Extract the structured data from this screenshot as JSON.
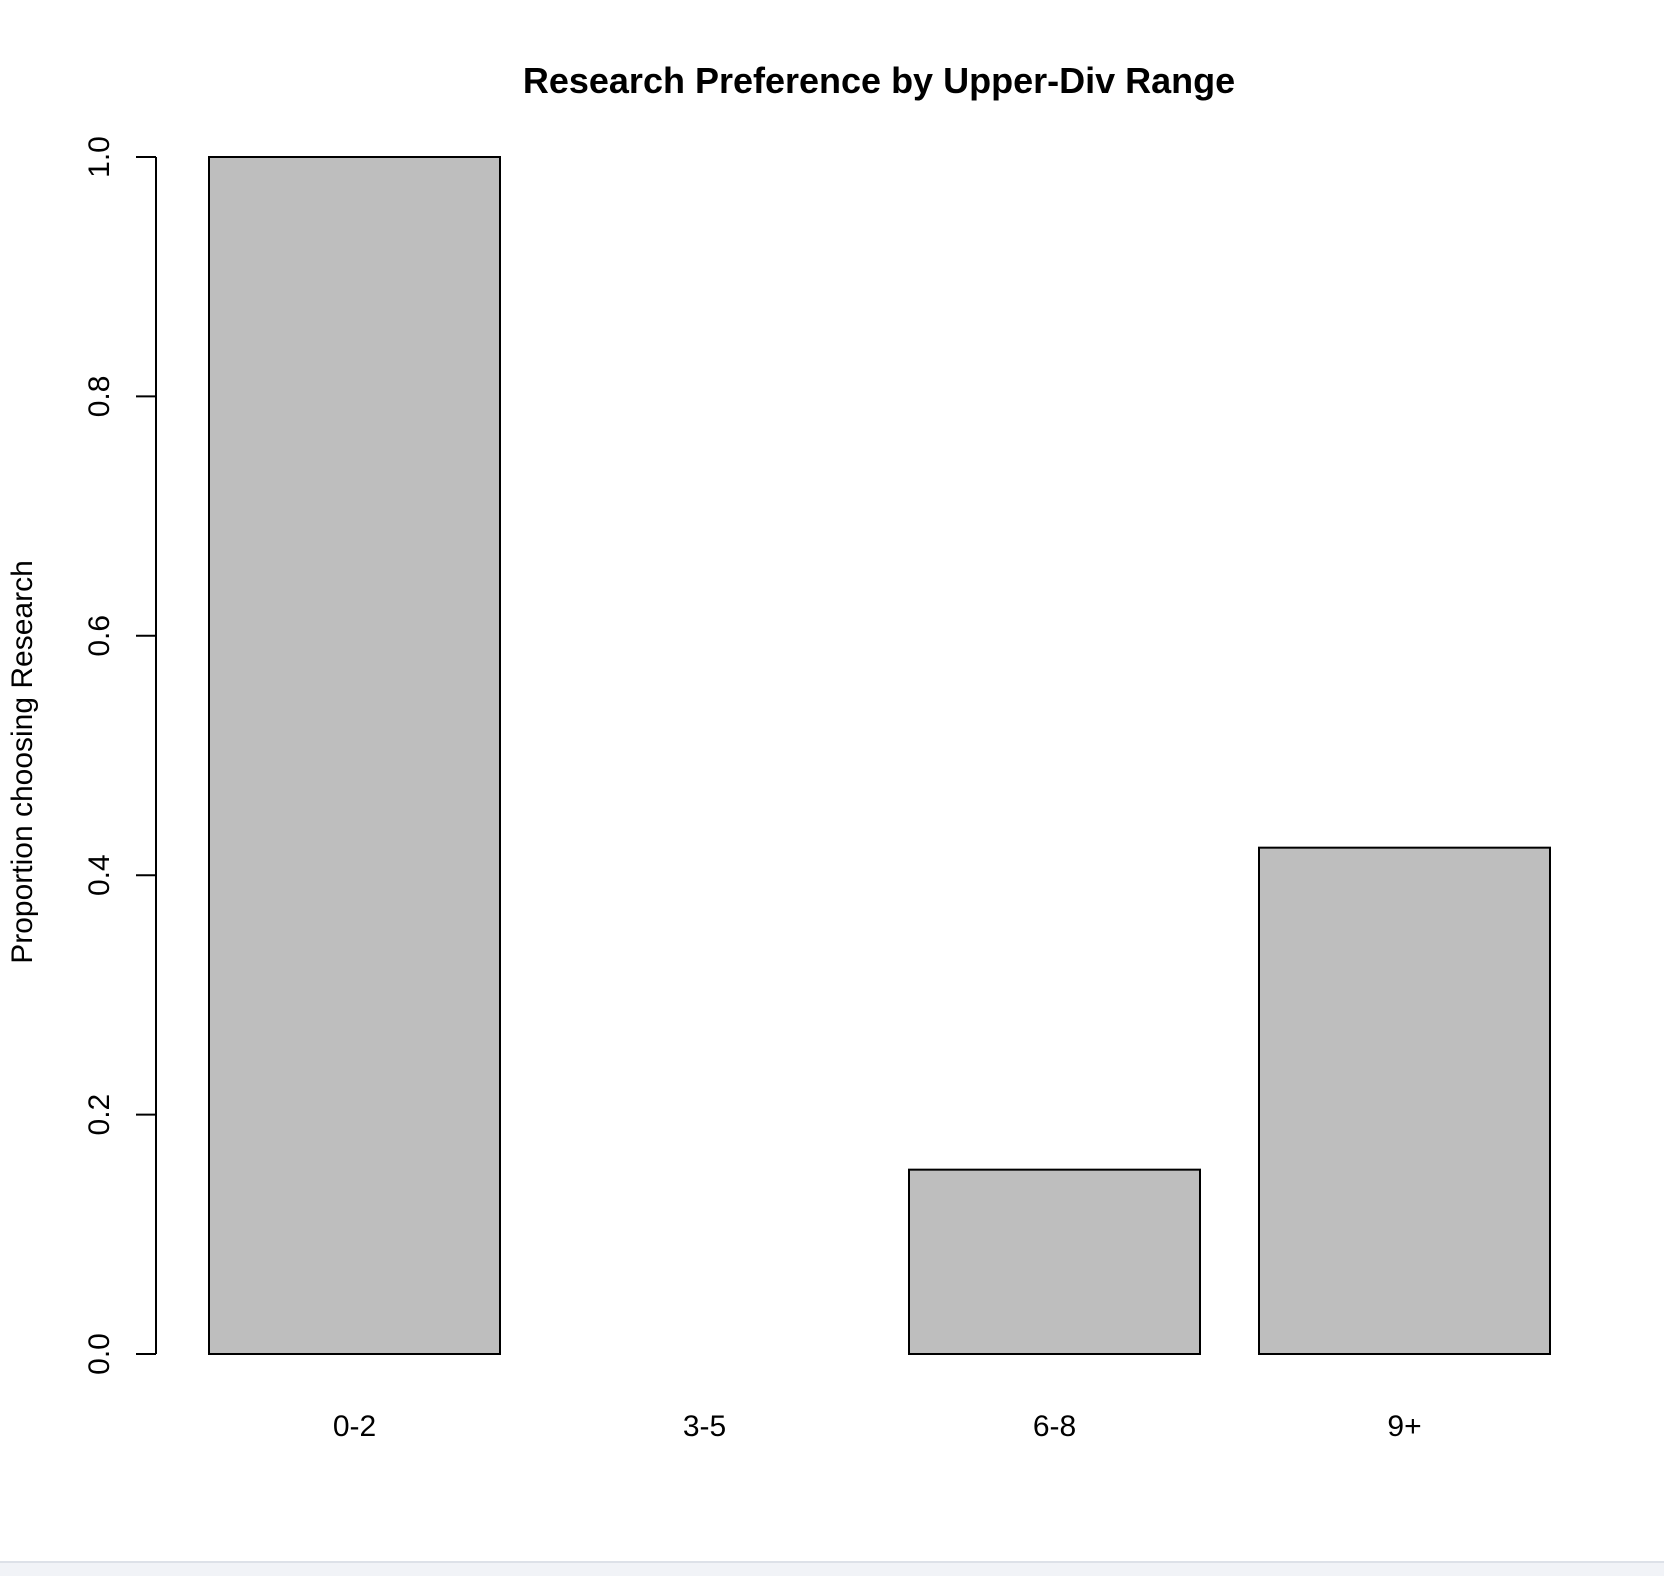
{
  "chart_data": {
    "type": "bar",
    "title": "Research Preference by Upper-Div Range",
    "xlabel": "",
    "ylabel": "Proportion choosing Research",
    "categories": [
      "0-2",
      "3-5",
      "6-8",
      "9+"
    ],
    "values": [
      1.0,
      0.0,
      0.154,
      0.423
    ],
    "ylim": [
      0,
      1.0
    ],
    "yticks": [
      0.0,
      0.2,
      0.4,
      0.6,
      0.8,
      1.0
    ],
    "ytick_labels": [
      "0.0",
      "0.2",
      "0.4",
      "0.6",
      "0.8",
      "1.0"
    ],
    "grid": false,
    "bar_fill": "#bebebe",
    "bar_stroke": "#000000"
  }
}
